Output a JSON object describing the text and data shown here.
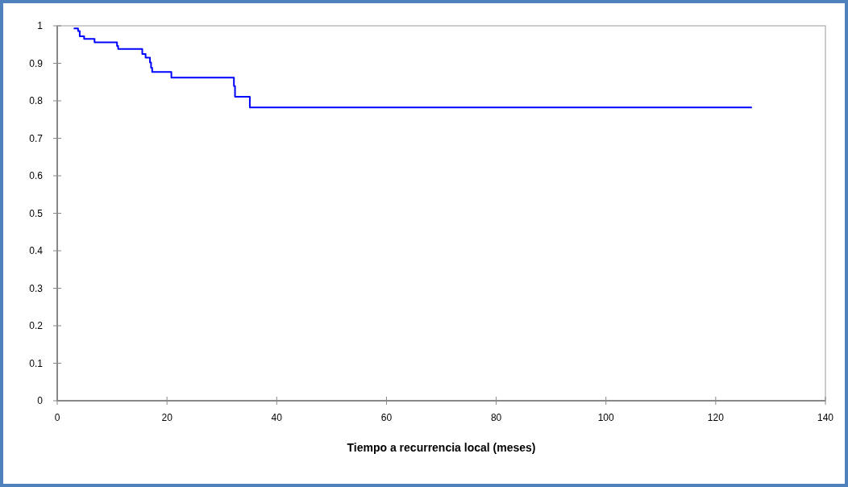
{
  "chart_data": {
    "type": "step",
    "xlabel": "Tiempo a recurrencia local (meses)",
    "x": [
      3.0,
      3.8,
      4.1,
      4.9,
      6.8,
      10.9,
      11.1,
      15.5,
      16.1,
      16.9,
      17.1,
      17.3,
      20.8,
      32.2,
      32.4,
      35.1,
      126.6
    ],
    "series": [
      {
        "color": "#0000ff",
        "values": [
          0.993,
          0.986,
          0.972,
          0.965,
          0.956,
          0.946,
          0.938,
          0.925,
          0.915,
          0.902,
          0.888,
          0.877,
          0.862,
          0.839,
          0.811,
          0.782,
          0.782
        ]
      }
    ],
    "xlim": [
      0,
      140
    ],
    "xticks": [
      0,
      20,
      40,
      60,
      80,
      100,
      120,
      140
    ],
    "ylim": [
      0,
      1
    ],
    "yticks": [
      0,
      0.1,
      0.2,
      0.3,
      0.4,
      0.5,
      0.6,
      0.7,
      0.8,
      0.9,
      1
    ],
    "grid": false,
    "marker": "none",
    "line_style": "solid"
  }
}
